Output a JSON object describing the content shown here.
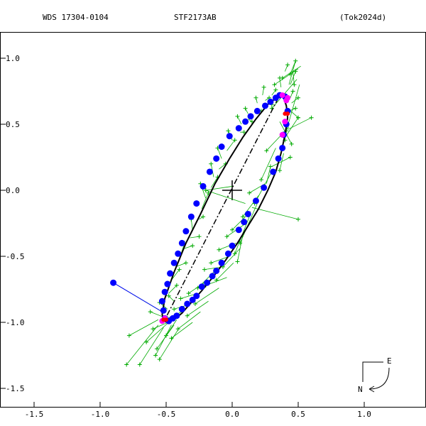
{
  "header": {
    "left": "WDS 17304-0104",
    "center": "STF2173AB",
    "right": "(Tok2024d)"
  },
  "compass": {
    "east_label": "E",
    "north_label": "N"
  },
  "chart_data": {
    "type": "scatter",
    "title": "STF2173AB",
    "xlim": [
      -1.5,
      1.0
    ],
    "ylim": [
      -1.5,
      1.0
    ],
    "x_ticks": [
      -1.5,
      -1.0,
      -0.5,
      0.0,
      0.5,
      1.0
    ],
    "x_tick_labels": [
      "-1.5",
      "-1.0",
      "-0.5",
      "0.0",
      "0.5",
      "1.0"
    ],
    "y_ticks": [
      1.0,
      0.5,
      0.0,
      -0.5,
      -1.0,
      -1.5
    ],
    "y_tick_labels": [
      "1.0",
      "0.5",
      "0.0",
      "-0.5",
      "-1.0",
      "-1.5"
    ],
    "grid": false,
    "colors": {
      "orbit": "#000000",
      "measures": "#0000ff",
      "micrometric": "#00aa00",
      "highlight": "#ff00ff",
      "recent": "#ff0000"
    },
    "orbit": {
      "x": [
        0.36,
        0.39,
        0.41,
        0.42,
        0.4,
        0.37,
        0.33,
        0.27,
        0.2,
        0.12,
        0.04,
        -0.05,
        -0.14,
        -0.23,
        -0.31,
        -0.38,
        -0.44,
        -0.49,
        -0.52,
        -0.53,
        -0.51,
        -0.44,
        -0.35,
        -0.24,
        -0.13,
        -0.02,
        0.08,
        0.18,
        0.27,
        0.36
      ],
      "y": [
        0.72,
        0.7,
        0.64,
        0.55,
        0.42,
        0.28,
        0.14,
        0.0,
        -0.14,
        -0.27,
        -0.4,
        -0.53,
        -0.65,
        -0.76,
        -0.85,
        -0.93,
        -0.98,
        -1.0,
        -0.99,
        -0.94,
        -0.82,
        -0.62,
        -0.4,
        -0.18,
        0.05,
        0.24,
        0.4,
        0.54,
        0.65,
        0.72
      ]
    },
    "line_of_nodes": {
      "x": [
        0.35,
        -0.51
      ],
      "y": [
        0.7,
        -0.98
      ]
    },
    "measures": {
      "x": [
        0.4,
        0.42,
        0.41,
        0.39,
        0.38,
        0.35,
        0.31,
        0.24,
        0.18,
        0.12,
        0.09,
        0.05,
        0.0,
        -0.03,
        -0.08,
        -0.12,
        -0.15,
        -0.19,
        -0.23,
        -0.27,
        -0.3,
        -0.34,
        -0.38,
        -0.42,
        -0.45,
        -0.48,
        -0.51,
        -0.52,
        -0.53,
        -0.51,
        -0.49,
        -0.47,
        -0.44,
        -0.41,
        -0.38,
        -0.35,
        -0.31,
        -0.27,
        -0.22,
        -0.17,
        -0.12,
        -0.08,
        -0.02,
        0.05,
        0.1,
        0.14,
        0.19,
        0.25,
        0.29,
        0.33,
        0.36,
        -0.9
      ],
      "y": [
        0.71,
        0.6,
        0.5,
        0.42,
        0.32,
        0.24,
        0.14,
        0.02,
        -0.08,
        -0.18,
        -0.24,
        -0.3,
        -0.42,
        -0.48,
        -0.55,
        -0.61,
        -0.65,
        -0.7,
        -0.73,
        -0.8,
        -0.83,
        -0.86,
        -0.9,
        -0.95,
        -0.97,
        -0.99,
        -0.97,
        -0.91,
        -0.84,
        -0.77,
        -0.71,
        -0.63,
        -0.55,
        -0.48,
        -0.4,
        -0.31,
        -0.2,
        -0.1,
        0.03,
        0.14,
        0.24,
        0.33,
        0.41,
        0.47,
        0.52,
        0.56,
        0.6,
        0.64,
        0.67,
        0.7,
        0.72,
        -0.7
      ]
    },
    "highlight_measures": {
      "x": [
        0.38,
        0.41,
        0.4,
        0.38,
        0.42,
        -0.53,
        -0.51
      ],
      "y": [
        0.72,
        0.68,
        0.52,
        0.42,
        0.7,
        -0.99,
        -0.97
      ]
    },
    "recent_measures": {
      "x": [
        0.4,
        0.42,
        -0.52,
        -0.5
      ],
      "y": [
        0.58,
        0.58,
        -0.98,
        -0.98
      ]
    },
    "micrometric": {
      "x": [
        0.32,
        0.38,
        0.44,
        0.47,
        0.3,
        0.41,
        0.45,
        0.26,
        0.36,
        0.44,
        0.22,
        0.29,
        0.17,
        0.08,
        0.13,
        0.0,
        0.06,
        -0.04,
        0.02,
        0.04,
        -0.1,
        -0.07,
        -0.16,
        -0.12,
        -0.21,
        -0.26,
        -0.2,
        -0.33,
        -0.28,
        -0.39,
        -0.34,
        -0.44,
        -0.41,
        -0.49,
        -0.46,
        -0.57,
        -0.6,
        -0.55,
        -0.65,
        -0.5,
        -0.58,
        -0.62,
        -0.48,
        -0.7,
        -0.78,
        -0.55,
        -0.42,
        -0.4,
        -0.35,
        -0.36,
        -0.3,
        -0.25,
        -0.31,
        -0.22,
        -0.18,
        -0.24,
        -0.11,
        -0.16,
        -0.05,
        -0.11,
        0.02,
        -0.03,
        0.09,
        0.04,
        0.15,
        0.1,
        0.22,
        0.18,
        0.28,
        0.24,
        0.33,
        0.3,
        0.36,
        0.42,
        -0.2,
        0.5,
        0.48,
        0.5,
        0.46,
        0.4,
        0.48
      ],
      "y": [
        0.8,
        0.85,
        0.88,
        0.8,
        0.62,
        0.45,
        0.35,
        0.3,
        0.15,
        0.25,
        0.08,
        0.18,
        -0.1,
        -0.2,
        -0.02,
        -0.3,
        -0.4,
        -0.35,
        -0.48,
        -0.54,
        -0.45,
        -0.58,
        -0.55,
        -0.68,
        -0.6,
        -0.74,
        -0.72,
        -0.78,
        -0.86,
        -0.82,
        -0.95,
        -0.9,
        -1.05,
        -0.97,
        -1.12,
        -1.2,
        -1.05,
        -1.28,
        -1.15,
        -1.1,
        -1.25,
        -0.92,
        -0.8,
        -1.32,
        -1.1,
        -0.85,
        -0.72,
        -0.6,
        -0.55,
        -0.4,
        -0.42,
        -0.35,
        -0.22,
        -0.2,
        -0.02,
        0.05,
        0.1,
        0.2,
        0.2,
        0.32,
        0.38,
        0.45,
        0.44,
        0.56,
        0.52,
        0.62,
        0.6,
        0.7,
        0.7,
        0.78,
        0.76,
        0.65,
        0.85,
        0.95,
        0.0,
        0.55,
        0.98,
        0.7,
        0.75,
        0.38,
        0.62
      ]
    },
    "micrometric_residual_ends": {
      "x": [
        0.5,
        0.52,
        0.48,
        0.46,
        0.49,
        0.51,
        0.36,
        0.43,
        0.39,
        0.3,
        0.33,
        0.26,
        0.31,
        0.2,
        0.25,
        0.14,
        0.19,
        0.09,
        0.13,
        0.08,
        0.03,
        0.06,
        -0.02,
        0.01,
        -0.07,
        -0.12,
        -0.04,
        -0.18,
        -0.1,
        -0.26,
        -0.18,
        -0.31,
        -0.24,
        -0.38,
        -0.3,
        -0.44,
        -0.44,
        -0.4,
        -0.48,
        -0.42,
        -0.46,
        -0.52,
        -0.44,
        -0.52,
        -0.56,
        -0.49,
        -0.48,
        -0.46,
        -0.43,
        -0.4,
        -0.36,
        -0.32,
        -0.3,
        -0.25,
        -0.23,
        -0.2,
        -0.16,
        -0.14,
        -0.1,
        -0.08,
        -0.04,
        0.0,
        0.06,
        0.07,
        0.12,
        0.12,
        0.18,
        0.19,
        0.25,
        0.23,
        0.3,
        0.32,
        0.37,
        0.4,
        0.1,
        0.42,
        0.43,
        0.45,
        0.44,
        0.41,
        0.43
      ],
      "y": [
        0.92,
        0.94,
        0.98,
        0.9,
        0.84,
        0.8,
        0.52,
        0.48,
        0.28,
        0.18,
        0.32,
        0.05,
        0.16,
        -0.04,
        0.05,
        -0.16,
        -0.1,
        -0.26,
        -0.2,
        -0.34,
        -0.4,
        -0.44,
        -0.5,
        -0.55,
        -0.58,
        -0.6,
        -0.66,
        -0.68,
        -0.74,
        -0.78,
        -0.84,
        -0.86,
        -0.92,
        -0.92,
        -1.0,
        -1.02,
        -0.98,
        -1.04,
        -1.0,
        -0.98,
        -1.02,
        -0.96,
        -0.84,
        -1.04,
        -0.98,
        -0.9,
        -0.78,
        -0.68,
        -0.58,
        -0.52,
        -0.44,
        -0.36,
        -0.3,
        -0.22,
        -0.14,
        -0.06,
        0.02,
        0.1,
        0.16,
        0.24,
        0.3,
        0.38,
        0.44,
        0.5,
        0.54,
        0.58,
        0.62,
        0.66,
        0.68,
        0.72,
        0.72,
        0.7,
        0.78,
        0.9,
        -0.1,
        0.62,
        0.8,
        0.66,
        0.7,
        0.48,
        0.6
      ]
    },
    "outlier_segments": [
      {
        "from": [
          0.5,
          0.55
        ],
        "to": [
          0.4,
          0.4
        ]
      },
      {
        "from": [
          0.48,
          0.9
        ],
        "to": [
          0.44,
          0.8
        ]
      },
      {
        "from": [
          -0.2,
          0.0
        ],
        "to": [
          0.0,
          0.03
        ]
      },
      {
        "from": [
          0.5,
          -0.22
        ],
        "to": [
          0.15,
          -0.13
        ]
      },
      {
        "from": [
          -0.9,
          -0.7
        ],
        "to": [
          -0.53,
          -0.92
        ]
      },
      {
        "from": [
          -0.8,
          -1.32
        ],
        "to": [
          -0.56,
          -1.02
        ]
      },
      {
        "from": [
          0.6,
          0.55
        ],
        "to": [
          0.42,
          0.46
        ]
      }
    ]
  }
}
